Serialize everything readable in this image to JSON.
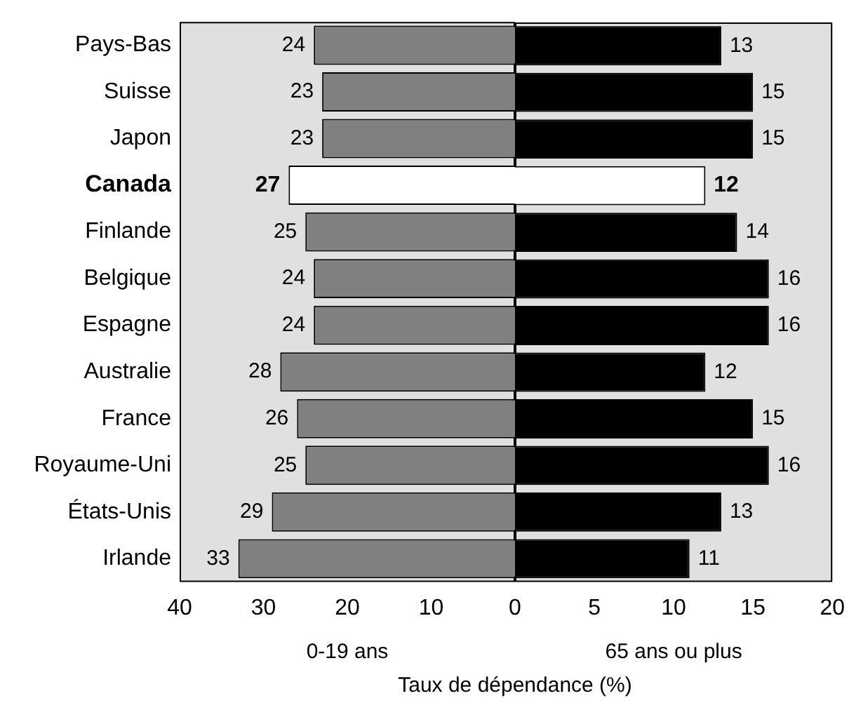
{
  "chart_data": [
    {
      "type": "bar",
      "orientation": "horizontal",
      "categories": [
        "Pays-Bas",
        "Suisse",
        "Japon",
        "Canada",
        "Finlande",
        "Belgique",
        "Espagne",
        "Australie",
        "France",
        "Royaume-Uni",
        "États-Unis",
        "Irlande"
      ],
      "values": [
        24,
        23,
        23,
        27,
        25,
        24,
        24,
        28,
        26,
        25,
        29,
        33
      ],
      "colors": [
        "#808080",
        "#808080",
        "#808080",
        "#ffffff",
        "#808080",
        "#808080",
        "#808080",
        "#808080",
        "#808080",
        "#808080",
        "#808080",
        "#808080"
      ],
      "xlim": [
        40,
        0
      ],
      "xticks": [
        40,
        30,
        20,
        10
      ],
      "xlabel": "0-19 ans",
      "data_labels": true,
      "annotations": [
        "Taux de dépendance (%)"
      ]
    },
    {
      "type": "bar",
      "orientation": "horizontal",
      "categories": [
        null,
        null,
        null,
        null,
        null,
        null,
        null,
        null,
        null,
        null,
        null,
        null
      ],
      "values": [
        13,
        15,
        15,
        12,
        14,
        16,
        16,
        12,
        15,
        16,
        13,
        11
      ],
      "colors": [
        "#000000",
        "#000000",
        "#000000",
        "#ffffff",
        "#000000",
        "#000000",
        "#000000",
        "#000000",
        "#000000",
        "#000000",
        "#000000",
        "#000000"
      ],
      "xlim": [
        0,
        20
      ],
      "xticks": [
        0,
        5,
        10,
        15,
        20
      ],
      "xlabel": "65 ans ou plus",
      "data_labels": true,
      "tick_labels": "x"
    }
  ]
}
